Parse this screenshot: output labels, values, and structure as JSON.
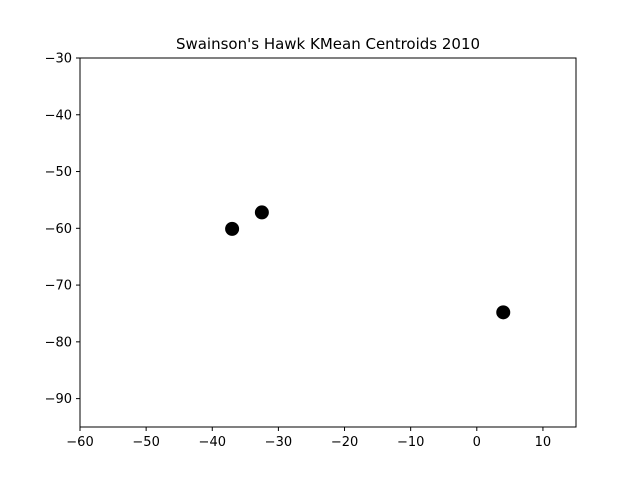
{
  "chart_data": {
    "type": "scatter",
    "title": "Swainson's Hawk KMean Centroids 2010",
    "xlabel": "",
    "ylabel": "",
    "xlim": [
      -60,
      15
    ],
    "ylim": [
      -95,
      -30
    ],
    "x_ticks": [
      -60,
      -50,
      -40,
      -30,
      -20,
      -10,
      0,
      10
    ],
    "y_ticks": [
      -30,
      -40,
      -50,
      -60,
      -70,
      -80,
      -90
    ],
    "x_tick_labels": [
      "−60",
      "−50",
      "−40",
      "−30",
      "−20",
      "−10",
      "0",
      "10"
    ],
    "y_tick_labels": [
      "−30",
      "−40",
      "−50",
      "−60",
      "−70",
      "−80",
      "−90"
    ],
    "grid": false,
    "legend": "none",
    "marker_color": "#000000",
    "series": [
      {
        "points": [
          {
            "x": -37.0,
            "y": -60.1
          },
          {
            "x": -32.5,
            "y": -57.2
          },
          {
            "x": 4.0,
            "y": -74.8
          }
        ]
      }
    ]
  }
}
